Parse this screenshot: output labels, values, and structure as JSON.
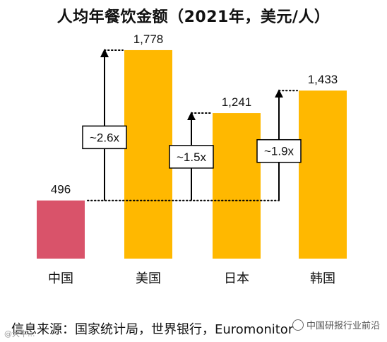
{
  "chart_data": {
    "type": "bar",
    "title": "人均年餐饮金额（2021年，美元/人）",
    "categories": [
      "中国",
      "美国",
      "日本",
      "韩国"
    ],
    "values": [
      496,
      1778,
      1241,
      1433
    ],
    "value_labels": [
      "496",
      "1,778",
      "1,241",
      "1,433"
    ],
    "colors": [
      "#d9536a",
      "#ffb800",
      "#ffb800",
      "#ffb800"
    ],
    "multipliers": [
      {
        "from": "中国",
        "to": "美国",
        "label": "~2.6x"
      },
      {
        "from": "中国",
        "to": "日本",
        "label": "~1.5x"
      },
      {
        "from": "中国",
        "to": "韩国",
        "label": "~1.9x"
      }
    ],
    "ylim": [
      0,
      1850
    ],
    "grid": false,
    "axes_visible": false
  },
  "source": "信息来源：国家统计局，世界银行，Euromonitor",
  "watermark_right": "中国研报行业前沿",
  "watermark_left": "@大牛..."
}
